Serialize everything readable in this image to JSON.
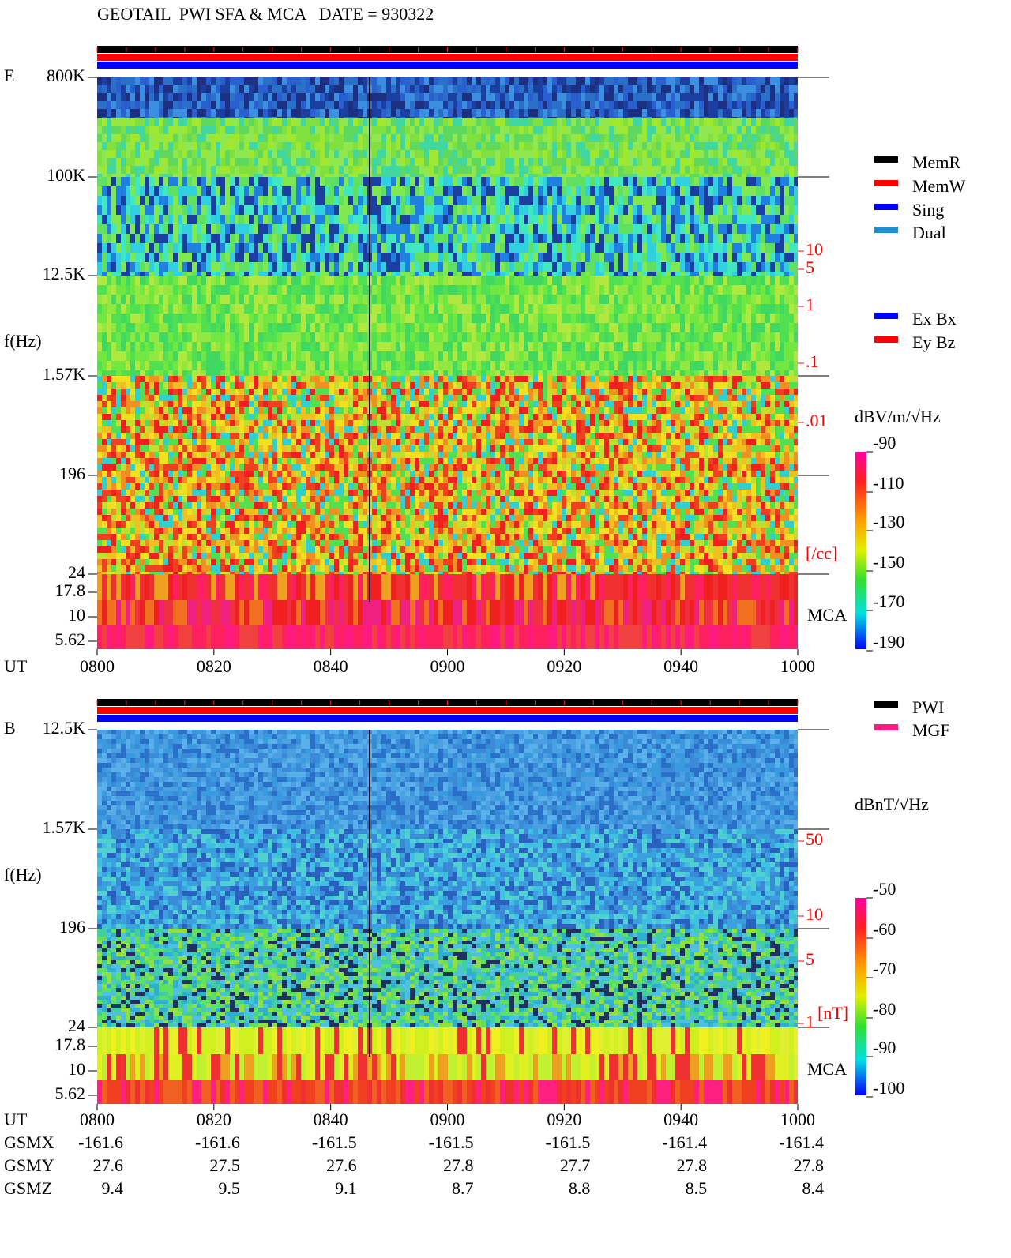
{
  "header": {
    "title": "GEOTAIL  PWI SFA & MCA   DATE = 930322"
  },
  "panels": [
    {
      "label": "E",
      "freq_ticks": [
        "800K",
        "100K",
        "12.5K",
        "1.57K",
        "196",
        "24",
        "17.8",
        "10",
        "5.62"
      ],
      "freq_axis_label": "f(Hz)",
      "time_axis_label": "UT",
      "time_ticks": [
        "0800",
        "0820",
        "0840",
        "0900",
        "0920",
        "0940",
        "1000"
      ],
      "density_ticks": [
        "10",
        "5",
        "1",
        ".1",
        ".01"
      ],
      "density_unit": "[/cc]",
      "mca_label": "MCA",
      "colorbar_unit": "dBV/m/√Hz",
      "colorbar_ticks": [
        "-90",
        "-110",
        "-130",
        "-150",
        "-170",
        "-190"
      ]
    },
    {
      "label": "B",
      "freq_ticks": [
        "12.5K",
        "1.57K",
        "196",
        "24",
        "17.8",
        "10",
        "5.62"
      ],
      "freq_axis_label": "f(Hz)",
      "time_axis_label": "UT",
      "time_ticks": [
        "0800",
        "0820",
        "0840",
        "0900",
        "0920",
        "0940",
        "1000"
      ],
      "density_ticks": [
        "50",
        "10",
        "5",
        "1"
      ],
      "density_unit": "[nT]",
      "mca_label": "MCA",
      "colorbar_unit": "dBnT/√Hz",
      "colorbar_ticks": [
        "-50",
        "-60",
        "-70",
        "-80",
        "-90",
        "-100"
      ]
    }
  ],
  "legends": {
    "memory": [
      {
        "label": "MemR",
        "color": "#000000"
      },
      {
        "label": "MemW",
        "color": "#ff0000"
      },
      {
        "label": "Sing",
        "color": "#0000ff"
      },
      {
        "label": "Dual",
        "color": "#1e90d0"
      }
    ],
    "components": [
      {
        "label": "Ex Bx",
        "color": "#0000ff"
      },
      {
        "label": "Ey Bz",
        "color": "#ff0000"
      }
    ],
    "source": [
      {
        "label": "PWI",
        "color": "#000000"
      },
      {
        "label": "MGF",
        "color": "#ff1a80"
      }
    ]
  },
  "orbit": {
    "rows": [
      {
        "label": "GSMX",
        "values": [
          "-161.6",
          "-161.6",
          "-161.5",
          "-161.5",
          "-161.5",
          "-161.4",
          "-161.4"
        ]
      },
      {
        "label": "GSMY",
        "values": [
          "27.6",
          "27.5",
          "27.6",
          "27.8",
          "27.7",
          "27.8",
          "27.8"
        ]
      },
      {
        "label": "GSMZ",
        "values": [
          "9.4",
          "9.5",
          "9.1",
          "8.7",
          "8.8",
          "8.5",
          "8.4"
        ]
      }
    ]
  }
}
